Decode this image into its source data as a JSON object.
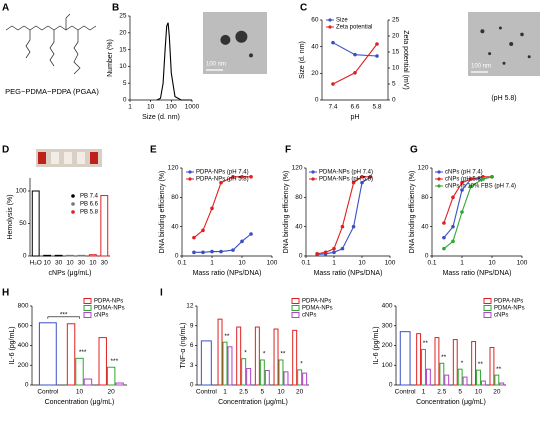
{
  "panel_labels": [
    "A",
    "B",
    "C",
    "D",
    "E",
    "F",
    "G",
    "H",
    "I"
  ],
  "structure": {
    "caption": "PEG−PDMA−PDPA (PGAA)"
  },
  "chart_data": [
    {
      "type": "line",
      "xscale": "log",
      "x": [
        20,
        30,
        40,
        50,
        60,
        70,
        80,
        100,
        150,
        300,
        1000
      ],
      "values": [
        0,
        0.5,
        5,
        15,
        22,
        23,
        19,
        8,
        1,
        0,
        0
      ],
      "color": "#000000",
      "xlim": [
        1,
        1000
      ],
      "xticks": [
        1,
        10,
        100,
        1000
      ],
      "ylim": [
        0,
        25
      ],
      "yticks": [
        0,
        5,
        10,
        15,
        20,
        25
      ],
      "xlabel": "Size (d. nm)",
      "ylabel": "Number (%)",
      "annotations": [
        "100 nm"
      ]
    },
    {
      "type": "line",
      "markers": true,
      "categories": [
        "7.4",
        "6.6",
        "5.8"
      ],
      "series": [
        {
          "name": "Size",
          "color": "#3b4fc4",
          "values": [
            43,
            34,
            33
          ]
        },
        {
          "name": "Zeta potential",
          "color": "#e02020",
          "axis": "y2",
          "values": [
            5,
            8.5,
            17.5
          ]
        }
      ],
      "ylim": [
        0,
        60
      ],
      "yticks": [
        0,
        20,
        40,
        60
      ],
      "y2lim": [
        0,
        25
      ],
      "y2ticks": [
        0,
        5,
        10,
        15,
        20,
        25
      ],
      "xlabel": "pH",
      "ylabel": "Size (d. nm)",
      "y2label": "Zeta potential (mV)",
      "annotations": [
        "100 nm",
        "(pH 5.8)"
      ]
    },
    {
      "type": "bar",
      "categories": [
        "H₂O",
        "10",
        "30",
        "10",
        "30",
        "10",
        "30"
      ],
      "values": [
        100,
        1,
        1,
        1,
        1,
        2,
        93
      ],
      "colors": [
        "#000000",
        "#000000",
        "#000000",
        "#777777",
        "#777777",
        "#e02020",
        "#e02020"
      ],
      "legend": [
        {
          "name": "PB 7.4",
          "color": "#000000"
        },
        {
          "name": "PB 6.6",
          "color": "#777777"
        },
        {
          "name": "PB 5.8",
          "color": "#e02020"
        }
      ],
      "ylim": [
        0,
        120
      ],
      "yticks": [
        0,
        50,
        100
      ],
      "xlabel": "cNPs (μg/mL)",
      "ylabel": "Hemolysis (%)"
    },
    {
      "type": "line",
      "markers": true,
      "xscale": "log",
      "x": [
        0.25,
        0.5,
        1,
        2,
        5,
        10,
        20
      ],
      "series": [
        {
          "name": "PDPA-NPs (pH 7.4)",
          "color": "#3b4fc4",
          "values": [
            5,
            5,
            6,
            6,
            8,
            20,
            30
          ]
        },
        {
          "name": "PDPA-NPs (pH 5.8)",
          "color": "#e02020",
          "values": [
            25,
            35,
            65,
            100,
            108,
            108,
            108
          ]
        }
      ],
      "xlim": [
        0.1,
        100
      ],
      "xticks": [
        0.1,
        1,
        10,
        100
      ],
      "ylim": [
        0,
        120
      ],
      "yticks": [
        0,
        40,
        80,
        120
      ],
      "xlabel": "Mass ratio (NPs/DNA)",
      "ylabel": "DNA binding efficiency (%)"
    },
    {
      "type": "line",
      "markers": true,
      "xscale": "log",
      "x": [
        0.25,
        0.5,
        1,
        2,
        5,
        10,
        20
      ],
      "series": [
        {
          "name": "PDMA-NPs (pH 7.4)",
          "color": "#3b4fc4",
          "values": [
            2,
            3,
            5,
            10,
            40,
            100,
            108
          ]
        },
        {
          "name": "PDMA-NPs (pH 5.8)",
          "color": "#e02020",
          "values": [
            3,
            5,
            10,
            40,
            100,
            108,
            108
          ]
        }
      ],
      "xlim": [
        0.1,
        100
      ],
      "xticks": [
        0.1,
        1,
        10,
        100
      ],
      "ylim": [
        0,
        120
      ],
      "yticks": [
        0,
        40,
        80,
        120
      ],
      "xlabel": "Mass ratio (NPs/DNA)",
      "ylabel": "DNA binding efficiency (%)"
    },
    {
      "type": "line",
      "markers": true,
      "xscale": "log",
      "x": [
        0.25,
        0.5,
        1,
        2,
        5,
        10
      ],
      "series": [
        {
          "name": "cNPs (pH 7.4)",
          "color": "#3b4fc4",
          "values": [
            25,
            40,
            90,
            105,
            105,
            108
          ]
        },
        {
          "name": "cNPs (pH 5.8)",
          "color": "#e02020",
          "values": [
            45,
            80,
            100,
            105,
            108,
            108
          ]
        },
        {
          "name": "cNPs in 10% FBS (pH 7.4)",
          "color": "#2fa82f",
          "values": [
            10,
            20,
            60,
            95,
            105,
            108
          ]
        }
      ],
      "xlim": [
        0.1,
        100
      ],
      "xticks": [
        0.1,
        1,
        10,
        100
      ],
      "ylim": [
        0,
        120
      ],
      "yticks": [
        0,
        40,
        80,
        120
      ],
      "xlabel": "Mass ratio (NPs/DNA)",
      "ylabel": "DNA binding efficiency (%)"
    },
    {
      "type": "grouped-bar",
      "categories": [
        "Control",
        "10",
        "20"
      ],
      "control": {
        "color": "#3b4fc4",
        "values": [
          630
        ]
      },
      "series": [
        {
          "name": "PDPA-NPs",
          "color": "#e02020",
          "values": [
            null,
            620,
            480
          ]
        },
        {
          "name": "PDMA-NPs",
          "color": "#2fa82f",
          "values": [
            null,
            270,
            180
          ]
        },
        {
          "name": "cNPs",
          "color": "#b040c8",
          "values": [
            null,
            60,
            20
          ]
        }
      ],
      "ylim": [
        0,
        800
      ],
      "yticks": [
        0,
        200,
        400,
        600,
        800
      ],
      "xlabel": "Concentration (μg/mL)",
      "ylabel": "IL-6 (pg/mL)",
      "annotations": [
        "***",
        "***",
        "***"
      ]
    },
    {
      "type": "grouped-bar",
      "categories": [
        "Control",
        "1",
        "2.5",
        "5",
        "10",
        "20"
      ],
      "control": {
        "color": "#3b4fc4",
        "values": [
          6.7
        ]
      },
      "series": [
        {
          "name": "PDPA-NPs",
          "color": "#e02020",
          "values": [
            null,
            10,
            8.8,
            8.8,
            8.5,
            8.3
          ]
        },
        {
          "name": "PDMA-NPs",
          "color": "#2fa82f",
          "values": [
            null,
            6.5,
            4,
            3.8,
            3.8,
            2.3
          ]
        },
        {
          "name": "cNPs",
          "color": "#b040c8",
          "values": [
            null,
            5.8,
            2.5,
            2.2,
            2,
            1.8
          ]
        }
      ],
      "ylim": [
        0,
        12
      ],
      "yticks": [
        0,
        3,
        6,
        9,
        12
      ],
      "xlabel": "Concentration (μg/mL)",
      "ylabel": "TNF-α (ng/mL)",
      "annotations": [
        "**",
        "*",
        "*",
        "**",
        "*"
      ]
    },
    {
      "type": "grouped-bar",
      "categories": [
        "Control",
        "1",
        "2.5",
        "5",
        "10",
        "20"
      ],
      "control": {
        "color": "#3b4fc4",
        "values": [
          270
        ]
      },
      "series": [
        {
          "name": "PDPA-NPs",
          "color": "#e02020",
          "values": [
            null,
            260,
            240,
            230,
            220,
            190
          ]
        },
        {
          "name": "PDMA-NPs",
          "color": "#2fa82f",
          "values": [
            null,
            180,
            110,
            80,
            75,
            50
          ]
        },
        {
          "name": "cNPs",
          "color": "#b040c8",
          "values": [
            null,
            80,
            50,
            40,
            20,
            10
          ]
        }
      ],
      "ylim": [
        0,
        400
      ],
      "yticks": [
        0,
        100,
        200,
        300,
        400
      ],
      "xlabel": "Concentration (μg/mL)",
      "ylabel": "IL-6 (pg/mL)",
      "annotations": [
        "**",
        "**",
        "*",
        "**",
        "**"
      ]
    }
  ]
}
